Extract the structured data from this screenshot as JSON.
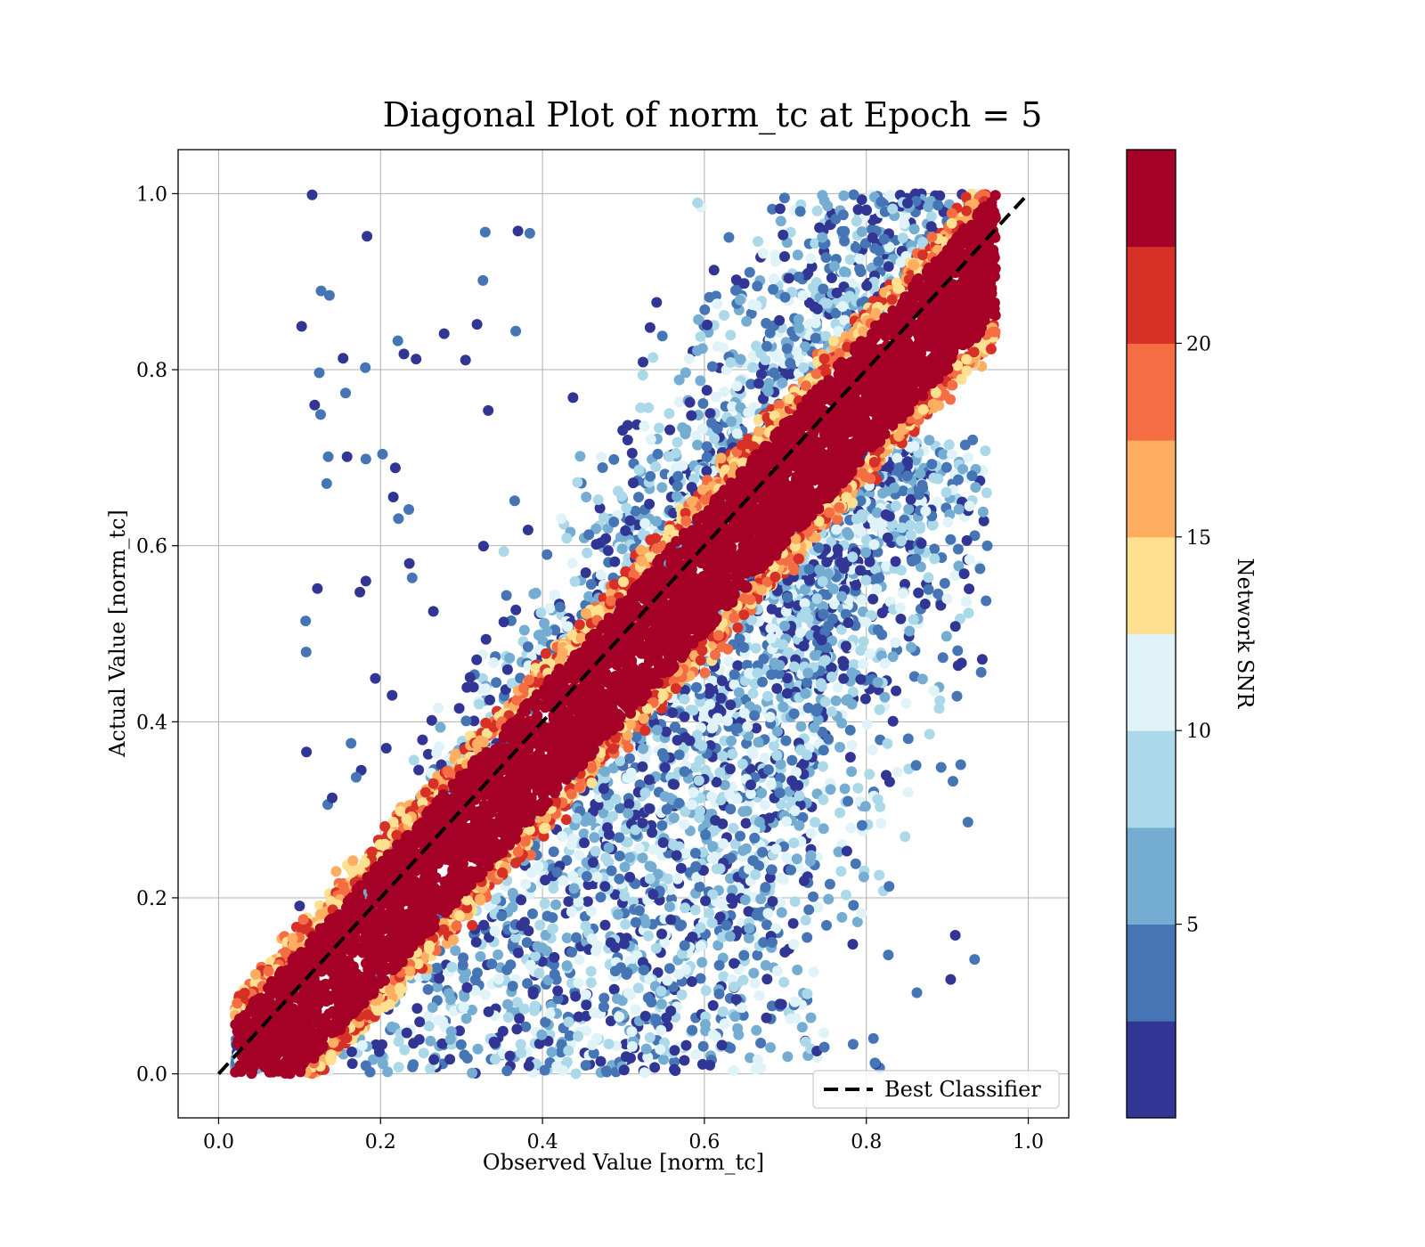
{
  "chart_data": {
    "type": "scatter",
    "title": "Diagonal Plot of norm_tc at Epoch = 5",
    "xlabel": "Observed Value [norm_tc]",
    "ylabel": "Actual Value [norm_tc]",
    "xlim": [
      -0.05,
      1.05
    ],
    "ylim": [
      -0.05,
      1.05
    ],
    "xticks": [
      "0.0",
      "0.2",
      "0.4",
      "0.6",
      "0.8",
      "1.0"
    ],
    "yticks": [
      "0.0",
      "0.2",
      "0.4",
      "0.6",
      "0.8",
      "1.0"
    ],
    "xtick_values": [
      0,
      0.2,
      0.4,
      0.6,
      0.8,
      1.0
    ],
    "ytick_values": [
      0,
      0.2,
      0.4,
      0.6,
      0.8,
      1.0
    ],
    "grid": true,
    "legend": {
      "label": "Best Classifier",
      "placement": "lower-right"
    },
    "reference_line": {
      "x": [
        0,
        1
      ],
      "y": [
        0,
        1
      ],
      "style": "dashed",
      "color": "#000000"
    },
    "colorbar": {
      "label": "Network SNR",
      "range": [
        0,
        25
      ],
      "ticks": [
        "5",
        "10",
        "15",
        "20"
      ],
      "tick_values": [
        5,
        10,
        15,
        20
      ],
      "colors": [
        "#313695",
        "#4575b4",
        "#74add1",
        "#abd9e9",
        "#e0f3f8",
        "#fee090",
        "#fdae61",
        "#f46d43",
        "#d73027",
        "#a50026"
      ]
    },
    "point_distribution": {
      "description_of_cloud": "dense high-SNR band along the diagonal, low-SNR points widely scattered",
      "band_offset": 0.03,
      "band_halfwidth": 0.07,
      "x_range": [
        0.02,
        0.96
      ],
      "y_range": [
        0.0,
        1.0
      ]
    }
  }
}
